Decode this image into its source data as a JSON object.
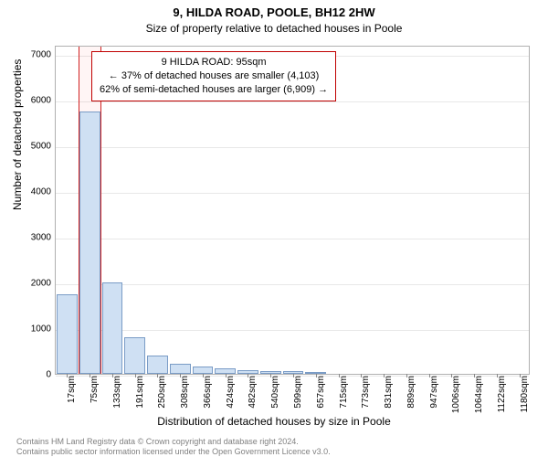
{
  "chart": {
    "type": "histogram",
    "title_line1": "9, HILDA ROAD, POOLE, BH12 2HW",
    "title_line2": "Size of property relative to detached houses in Poole",
    "title_fontsize": 13,
    "subtitle_fontsize": 12,
    "ylabel": "Number of detached properties",
    "xlabel": "Distribution of detached houses by size in Poole",
    "label_fontsize": 12,
    "tick_fontsize": 10,
    "background_color": "#ffffff",
    "plot_border_color": "#b0b0b0",
    "grid_color": "#e8e8e8",
    "bar_fill": "#cfe0f3",
    "bar_border": "#7a9cc6",
    "highlight_border": "#d02020",
    "highlight_fill": "rgba(255,0,0,0.04)",
    "annotation_border": "#c00000",
    "ylim": [
      0,
      7200
    ],
    "yticks": [
      0,
      1000,
      2000,
      3000,
      4000,
      5000,
      6000,
      7000
    ],
    "xticks": [
      "17sqm",
      "75sqm",
      "133sqm",
      "191sqm",
      "250sqm",
      "308sqm",
      "366sqm",
      "424sqm",
      "482sqm",
      "540sqm",
      "599sqm",
      "657sqm",
      "715sqm",
      "773sqm",
      "831sqm",
      "889sqm",
      "947sqm",
      "1006sqm",
      "1064sqm",
      "1122sqm",
      "1180sqm"
    ],
    "bars": [
      1750,
      5750,
      2000,
      800,
      400,
      220,
      160,
      120,
      90,
      70,
      55,
      45,
      0,
      0,
      0,
      0,
      0,
      0,
      0,
      0,
      0
    ],
    "highlight_index": 1,
    "annotation": {
      "line1": "9 HILDA ROAD: 95sqm",
      "line2": "← 37% of detached houses are smaller (4,103)",
      "line3": "62% of semi-detached houses are larger (6,909) →"
    }
  },
  "footer": {
    "line1": "Contains HM Land Registry data © Crown copyright and database right 2024.",
    "line2": "Contains public sector information licensed under the Open Government Licence v3.0."
  }
}
